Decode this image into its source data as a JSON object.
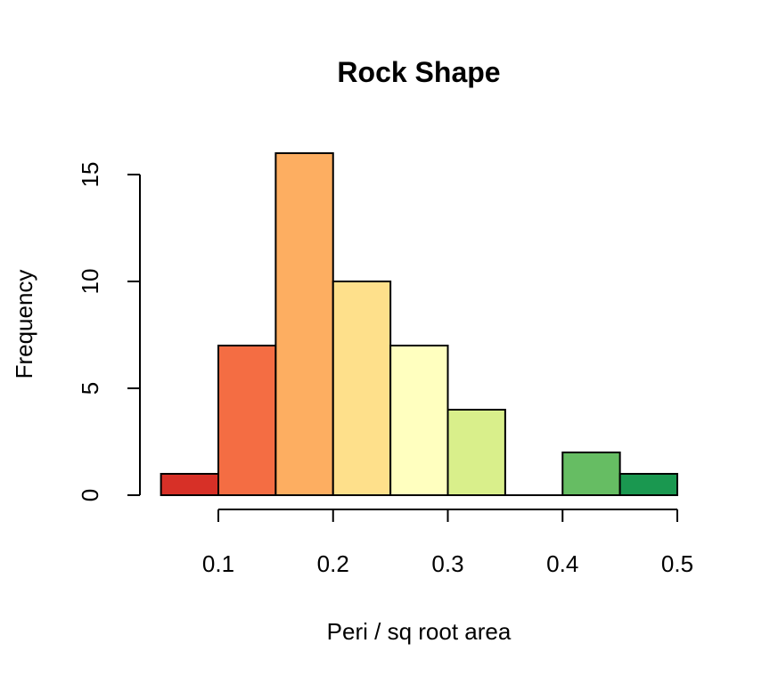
{
  "chart_data": {
    "type": "bar",
    "title": "Rock Shape",
    "xlabel": "Peri / sq root area",
    "ylabel": "Frequency",
    "bins": [
      {
        "start": 0.05,
        "end": 0.1,
        "value": 1,
        "color": "#D73027"
      },
      {
        "start": 0.1,
        "end": 0.15,
        "value": 7,
        "color": "#F46D43"
      },
      {
        "start": 0.15,
        "end": 0.2,
        "value": 16,
        "color": "#FDAE61"
      },
      {
        "start": 0.2,
        "end": 0.25,
        "value": 10,
        "color": "#FEE08B"
      },
      {
        "start": 0.25,
        "end": 0.3,
        "value": 7,
        "color": "#FFFFBF"
      },
      {
        "start": 0.3,
        "end": 0.35,
        "value": 4,
        "color": "#D9EF8B"
      },
      {
        "start": 0.35,
        "end": 0.4,
        "value": 0,
        "color": "#A6D96A"
      },
      {
        "start": 0.4,
        "end": 0.45,
        "value": 2,
        "color": "#66BD63"
      },
      {
        "start": 0.45,
        "end": 0.5,
        "value": 1,
        "color": "#1A9850"
      }
    ],
    "xticks": [
      0.1,
      0.2,
      0.3,
      0.4,
      0.5
    ],
    "xtick_labels": [
      "0.1",
      "0.2",
      "0.3",
      "0.4",
      "0.5"
    ],
    "yticks": [
      0,
      5,
      10,
      15
    ],
    "ytick_labels": [
      "0",
      "5",
      "10",
      "15"
    ],
    "xlim": [
      0.05,
      0.5
    ],
    "ylim": [
      0,
      16
    ],
    "grid": false
  }
}
